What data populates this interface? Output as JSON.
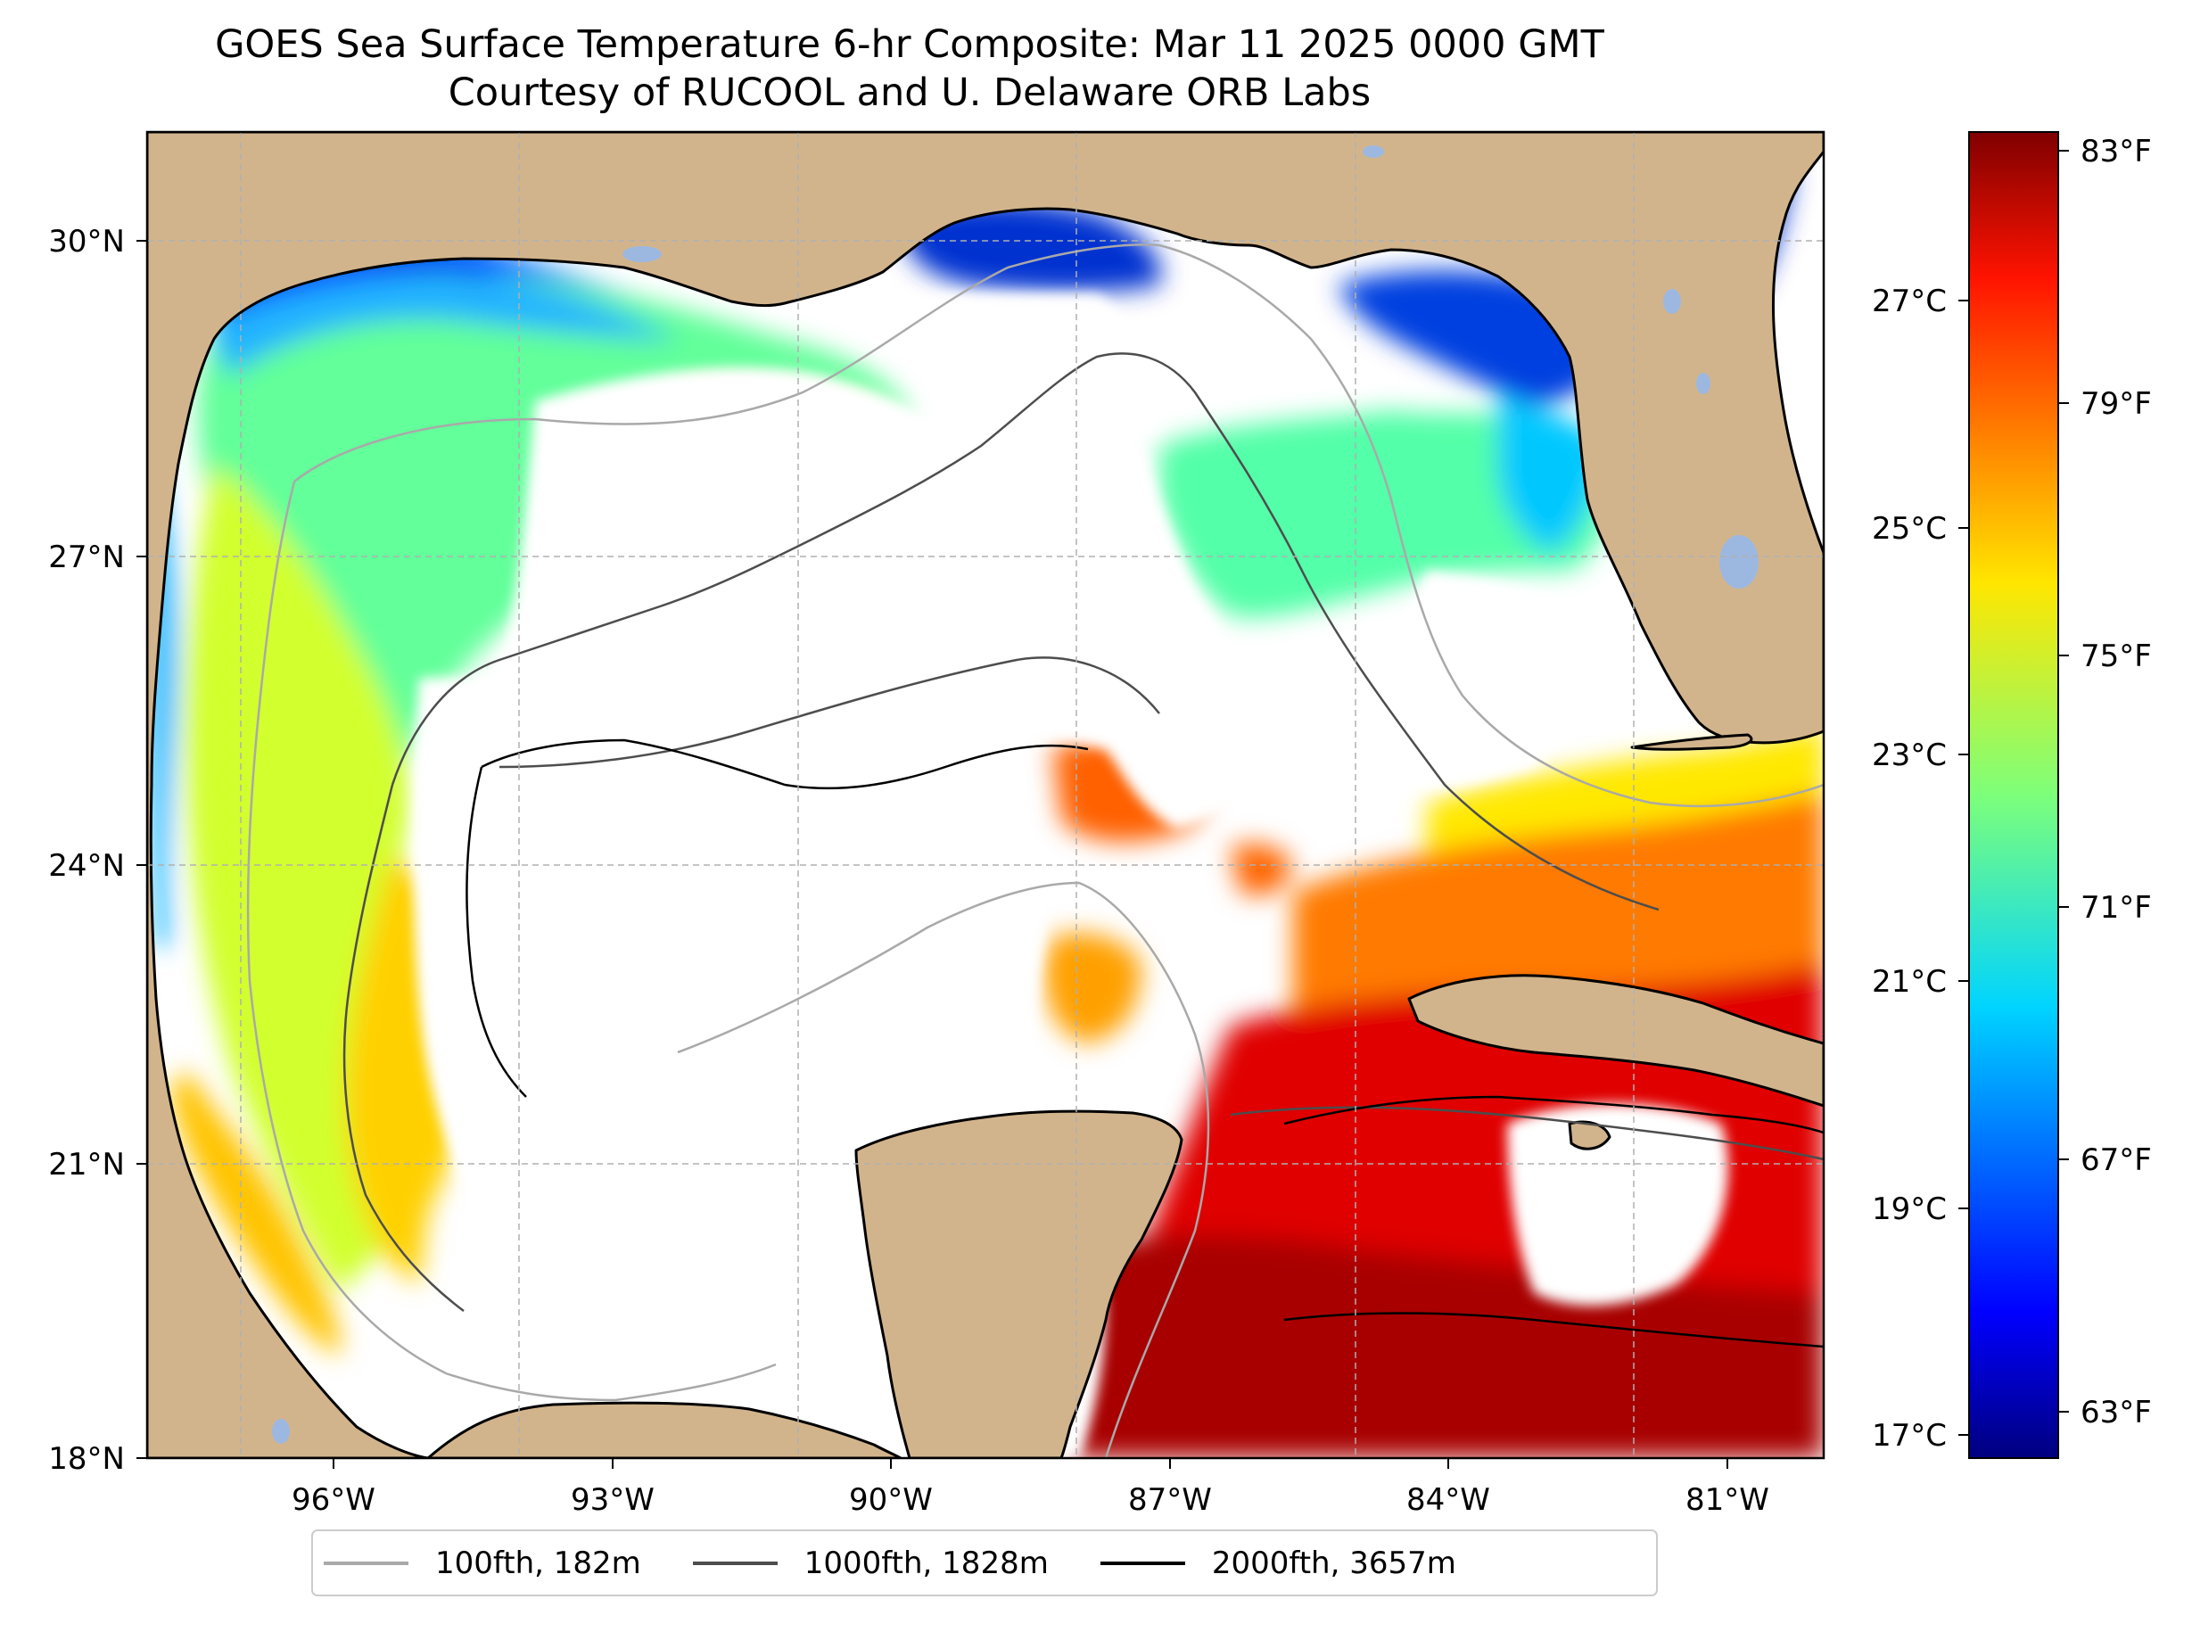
{
  "title": {
    "line1": "GOES Sea Surface Temperature 6-hr Composite: Mar 11 2025 0000 GMT",
    "line2": "Courtesy of RUCOOL and U. Delaware ORB Labs"
  },
  "map": {
    "lon_range": [
      -98,
      -80
    ],
    "lat_range": [
      18,
      31
    ],
    "lat_tick_labels": [
      {
        "lat": 30,
        "label": "30°N"
      },
      {
        "lat": 27,
        "label": "27°N"
      },
      {
        "lat": 24,
        "label": "24°N"
      },
      {
        "lat": 21,
        "label": "21°N"
      },
      {
        "lat": 18,
        "label": "18°N"
      }
    ],
    "lon_tick_labels": [
      {
        "lon": -96,
        "label": "96°W"
      },
      {
        "lon": -93,
        "label": "93°W"
      },
      {
        "lon": -90,
        "label": "90°W"
      },
      {
        "lon": -87,
        "label": "87°W"
      },
      {
        "lon": -84,
        "label": "84°W"
      },
      {
        "lon": -81,
        "label": "81°W"
      }
    ],
    "gridlines": true,
    "colors": {
      "land": "#D2B48C",
      "ocean_nodata": "#FFFFFF",
      "lakes": "#9DB8E0",
      "grid": "#B0B0B0"
    }
  },
  "colorbar": {
    "colormap": "jet",
    "range_f": [
      62.5,
      83.5
    ],
    "fahrenheit_ticks": [
      {
        "value": 83,
        "label": "83°F"
      },
      {
        "value": 79,
        "label": "79°F"
      },
      {
        "value": 75,
        "label": "75°F"
      },
      {
        "value": 71,
        "label": "71°F"
      },
      {
        "value": 67,
        "label": "67°F"
      },
      {
        "value": 63,
        "label": "63°F"
      }
    ],
    "celsius_ticks": [
      {
        "value": 27,
        "label": "27°C"
      },
      {
        "value": 25,
        "label": "25°C"
      },
      {
        "value": 23,
        "label": "23°C"
      },
      {
        "value": 21,
        "label": "21°C"
      },
      {
        "value": 19,
        "label": "19°C"
      },
      {
        "value": 17,
        "label": "17°C"
      }
    ]
  },
  "legend": {
    "entries": [
      {
        "label": "100fth, 182m",
        "color": "#A9A9A9"
      },
      {
        "label": "1000fth, 1828m",
        "color": "#4D4D4D"
      },
      {
        "label": "2000fth, 3657m",
        "color": "#000000"
      }
    ]
  }
}
